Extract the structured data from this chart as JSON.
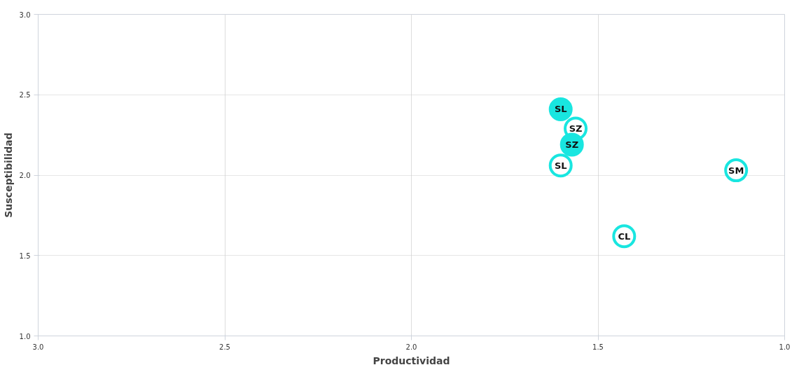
{
  "chart_data": {
    "type": "scatter",
    "xlabel": "Productividad",
    "ylabel": "Susceptibilidad",
    "xlim": [
      3.0,
      1.0
    ],
    "ylim": [
      1.0,
      3.0
    ],
    "xticks": [
      {
        "value": 3.0,
        "label": "3.0"
      },
      {
        "value": 2.5,
        "label": "2.5"
      },
      {
        "value": 2.0,
        "label": "2.0"
      },
      {
        "value": 1.5,
        "label": "1.5"
      },
      {
        "value": 1.0,
        "label": "1.0"
      }
    ],
    "yticks": [
      {
        "value": 1.0,
        "label": "1.0"
      },
      {
        "value": 1.5,
        "label": "1.5"
      },
      {
        "value": 2.0,
        "label": "2.0"
      },
      {
        "value": 2.5,
        "label": "2.5"
      },
      {
        "value": 3.0,
        "label": "3.0"
      }
    ],
    "grid": true,
    "marker": "circle",
    "series": [
      {
        "color": "#19e6e0",
        "x": [
          1.6,
          1.56,
          1.57,
          1.6,
          1.13,
          1.43
        ],
        "values": [
          2.41,
          2.29,
          2.19,
          2.06,
          2.03,
          1.62
        ],
        "colors": [
          "#19e6e0",
          "#ffffff",
          "#19e6e0",
          "#ffffff",
          "#ffffff",
          "#ffffff"
        ]
      }
    ],
    "annotations": [
      {
        "text": "SL",
        "x": 1.6,
        "y": 2.41
      },
      {
        "text": "SZ",
        "x": 1.56,
        "y": 2.29
      },
      {
        "text": "SZ",
        "x": 1.57,
        "y": 2.19
      },
      {
        "text": "SL",
        "x": 1.6,
        "y": 2.06
      },
      {
        "text": "SM",
        "x": 1.13,
        "y": 2.03
      },
      {
        "text": "CL",
        "x": 1.43,
        "y": 1.62
      }
    ]
  }
}
